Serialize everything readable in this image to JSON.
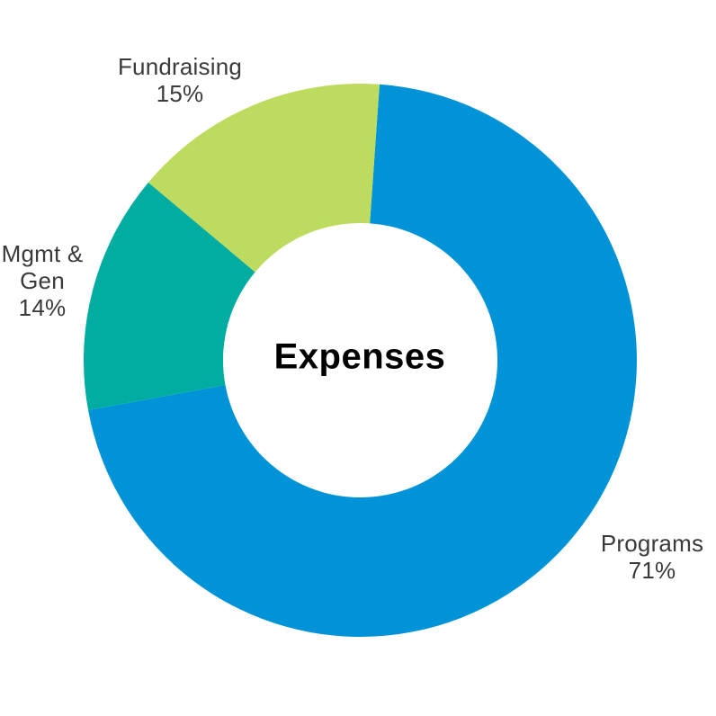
{
  "chart_data": {
    "type": "pie",
    "subtype": "donut",
    "title": "Expenses",
    "center_label": "Expenses",
    "categories": [
      "Programs",
      "Mgmt & Gen",
      "Fundraising"
    ],
    "values": [
      71,
      14,
      15
    ],
    "unit": "%",
    "colors": [
      "#0093d8",
      "#00ada0",
      "#bddb5e"
    ],
    "direction": "clockwise",
    "rotation_deg": 4,
    "inner_radius_ratio": 0.496,
    "legend_position": "none",
    "labels_outside": true,
    "background_color": "#ffffff",
    "label_text_color": "#3a3a3a",
    "center_text_color": "#000000"
  },
  "labels": {
    "fundraising": "Fundraising\n15%",
    "mgmt_gen": "Mgmt &\nGen\n14%",
    "programs": "Programs\n71%",
    "center": "Expenses"
  }
}
